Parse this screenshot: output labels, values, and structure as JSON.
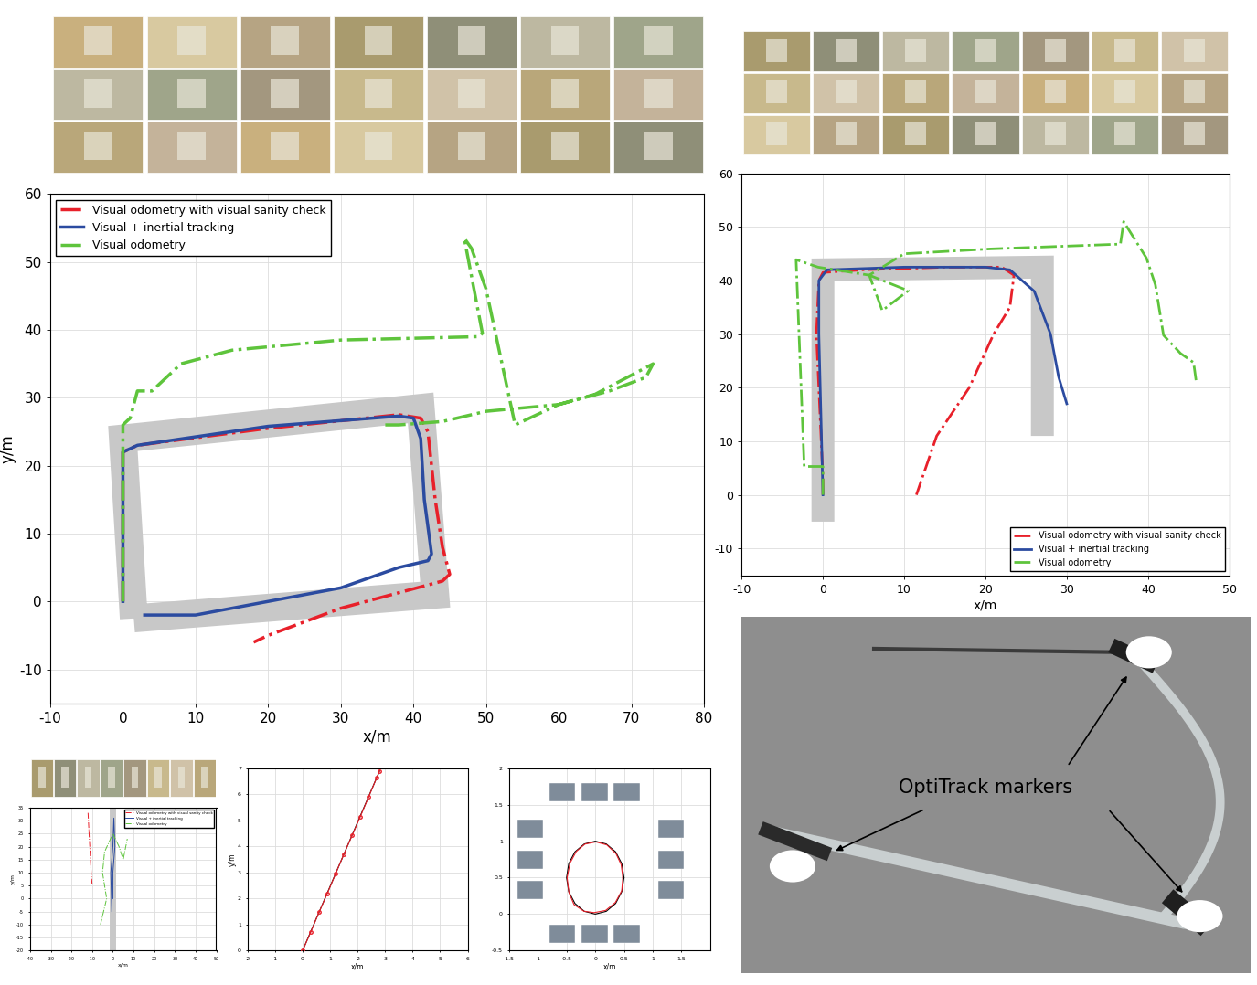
{
  "chart_data": [
    {
      "type": "line",
      "x_label": "x/m",
      "y_label": "y/m",
      "xlim": [
        -10,
        80
      ],
      "ylim": [
        -15,
        60
      ],
      "xticks": [
        -10,
        0,
        10,
        20,
        30,
        40,
        50,
        60,
        70,
        80
      ],
      "yticks": [
        -10,
        0,
        10,
        20,
        30,
        40,
        50,
        60
      ],
      "grid": true,
      "legend": "upper left",
      "corridor": {
        "color": "#c8c8c8",
        "x": [
          1.5,
          0,
          41,
          43,
          1.5
        ],
        "y": [
          -2.5,
          24,
          28.5,
          1,
          -2.5
        ]
      },
      "series": [
        {
          "name": "Visual odometry with visual sanity check",
          "color": "#e8202a",
          "line_style": "dashdot",
          "x": [
            0,
            0,
            2,
            20,
            38,
            41,
            42,
            43,
            44,
            45,
            44,
            30,
            20,
            18
          ],
          "y": [
            0,
            22,
            23,
            25.5,
            27.5,
            27,
            25,
            15,
            8,
            4,
            3,
            -1,
            -5,
            -6
          ]
        },
        {
          "name": "Visual + inertial tracking",
          "color": "#2b4ba0",
          "line_style": "solid",
          "x": [
            0,
            0,
            2,
            20,
            38,
            40,
            41,
            41.5,
            42.5,
            42,
            38,
            30,
            20,
            10,
            5,
            3
          ],
          "y": [
            0,
            22,
            23,
            25.8,
            27.3,
            27,
            24,
            15,
            7,
            6,
            5,
            2,
            0,
            -2,
            -2,
            -2
          ]
        },
        {
          "name": "Visual odometry",
          "color": "#5ec43c",
          "line_style": "dashdot",
          "x": [
            0,
            0,
            0,
            1,
            2,
            4,
            8,
            15,
            30,
            49,
            49.5,
            47,
            48,
            50,
            54,
            57,
            60,
            65,
            73,
            72,
            67,
            60,
            55,
            50,
            44,
            38,
            36
          ],
          "y": [
            0,
            20,
            26,
            27,
            31,
            31,
            35,
            37,
            38.5,
            39,
            39.5,
            53.5,
            52,
            46,
            26,
            27.5,
            29,
            30.5,
            35,
            33,
            31,
            29,
            28.5,
            28,
            26.5,
            26,
            26
          ]
        }
      ]
    },
    {
      "type": "line",
      "x_label": "x/m",
      "xlim": [
        -10,
        50
      ],
      "ylim": [
        -15,
        60
      ],
      "xticks": [
        -10,
        0,
        10,
        20,
        30,
        40,
        50
      ],
      "yticks": [
        -10,
        0,
        10,
        20,
        30,
        40,
        50,
        60
      ],
      "grid": true,
      "legend": "lower right",
      "corridor": {
        "color": "#c8c8c8",
        "x": [
          0,
          0,
          27,
          27
        ],
        "y": [
          -5,
          42,
          42.5,
          11
        ]
      },
      "series": [
        {
          "name": "Visual odometry with visual sanity check",
          "color": "#e8202a",
          "line_style": "dashdot",
          "x": [
            0,
            0,
            -0.8,
            -0.5,
            0,
            5,
            15,
            22,
            23.5,
            23,
            21,
            18,
            14,
            11.5
          ],
          "y": [
            0,
            3,
            30,
            40,
            41.5,
            42,
            42.5,
            42.5,
            41,
            35,
            30,
            20,
            11,
            0
          ]
        },
        {
          "name": "Visual + inertial tracking",
          "color": "#2b4ba0",
          "line_style": "solid",
          "x": [
            0,
            -0.5,
            -0.5,
            0.5,
            10,
            20,
            23,
            26,
            28,
            29,
            30
          ],
          "y": [
            0,
            30,
            40,
            42,
            42.5,
            42.5,
            42,
            38,
            30,
            22,
            17
          ]
        },
        {
          "name": "Visual odometry",
          "color": "#5ec43c",
          "line_style": "dashdot",
          "x": [
            0,
            0,
            -2.3,
            -3.3,
            -0.6,
            5.7,
            7.3,
            10.5,
            5.7,
            10,
            20.6,
            36.6,
            37,
            39.8,
            40.9,
            41.9,
            44,
            45.6,
            45.9
          ],
          "y": [
            0,
            5.3,
            5.3,
            43.9,
            42.5,
            41,
            34.4,
            38.1,
            41,
            45,
            45.9,
            46.8,
            51,
            44.2,
            39.2,
            29.8,
            26.4,
            24.7,
            21.4
          ]
        }
      ]
    },
    {
      "type": "line",
      "x_label": "x/m",
      "y_label": "y/m",
      "xlim": [
        -40,
        50
      ],
      "ylim": [
        -20,
        35
      ],
      "xticks": [
        -40,
        -30,
        -20,
        -10,
        0,
        10,
        20,
        30,
        40,
        50
      ],
      "yticks": [
        -20,
        -15,
        -10,
        -5,
        0,
        5,
        10,
        15,
        20,
        25,
        30,
        35
      ],
      "grid": true,
      "legend": "upper right",
      "corridor": {
        "color": "#c8c8c8",
        "x": [
          0,
          0
        ],
        "y": [
          -20,
          35
        ]
      },
      "series": [
        {
          "name": "Visual odometry with visual sanity check",
          "color": "#e8202a",
          "line_style": "dashdot",
          "x": [
            -12,
            -11.5,
            -11,
            -10.5,
            -10
          ],
          "y": [
            33,
            25,
            18,
            10,
            5
          ]
        },
        {
          "name": "Visual + inertial tracking",
          "color": "#2b4ba0",
          "line_style": "solid",
          "x": [
            0,
            0,
            1,
            0.5,
            0,
            -1,
            -0.5
          ],
          "y": [
            0,
            10,
            20,
            31,
            20,
            10,
            -5
          ]
        },
        {
          "name": "Visual odometry",
          "color": "#5ec43c",
          "line_style": "dashdot",
          "x": [
            -6,
            -3,
            -5,
            -4,
            0,
            3,
            5,
            7
          ],
          "y": [
            -10,
            0,
            10,
            18,
            25,
            20,
            15,
            23
          ]
        }
      ]
    },
    {
      "type": "line",
      "x_label": "x/m",
      "y_label": "y/m",
      "xlim": [
        -2,
        6
      ],
      "ylim": [
        0,
        7
      ],
      "xticks": [
        -2,
        -1,
        0,
        1,
        2,
        3,
        4,
        5,
        6
      ],
      "yticks": [
        0,
        1,
        2,
        3,
        4,
        5,
        6,
        7
      ],
      "grid": true,
      "series": [
        {
          "color": "#000000",
          "line_style": "solid",
          "x": [
            0,
            2.8
          ],
          "y": [
            0,
            6.9
          ]
        },
        {
          "color": "#e8202a",
          "line_style": "solid",
          "marker": "circle",
          "x": [
            0,
            0.3,
            0.6,
            0.9,
            1.2,
            1.5,
            1.8,
            2.1,
            2.4,
            2.7,
            2.8
          ],
          "y": [
            0,
            0.72,
            1.48,
            2.2,
            2.95,
            3.7,
            4.42,
            5.15,
            5.9,
            6.65,
            6.9
          ]
        }
      ]
    },
    {
      "type": "line",
      "x_label": "x/m",
      "xlim": [
        -1.5,
        2
      ],
      "ylim": [
        -0.5,
        2
      ],
      "xticks": [
        -1.5,
        -1,
        -0.5,
        0,
        0.5,
        1,
        1.5
      ],
      "yticks": [
        -0.5,
        0,
        0.5,
        1,
        1.5,
        2
      ],
      "grid": true,
      "series": [
        {
          "color": "#000000",
          "line_style": "solid",
          "x": [
            0.5,
            0.462,
            0.354,
            0.191,
            0,
            -0.191,
            -0.354,
            -0.462,
            -0.5,
            -0.462,
            -0.354,
            -0.191,
            0,
            0.191,
            0.354,
            0.462,
            0.5
          ],
          "y": [
            0.5,
            0.691,
            0.854,
            0.962,
            1.0,
            0.962,
            0.854,
            0.691,
            0.5,
            0.309,
            0.146,
            0.038,
            0,
            0.038,
            0.146,
            0.309,
            0.5
          ]
        },
        {
          "color": "#e8202a",
          "line_style": "solid",
          "x": [
            0.48,
            0.45,
            0.36,
            0.2,
            0.01,
            -0.18,
            -0.33,
            -0.44,
            -0.49,
            -0.46,
            -0.37,
            -0.2,
            -0.02,
            0.18,
            0.35,
            0.46,
            0.48
          ],
          "y": [
            0.5,
            0.68,
            0.83,
            0.95,
            0.99,
            0.96,
            0.86,
            0.7,
            0.5,
            0.3,
            0.13,
            0.04,
            0.02,
            0.05,
            0.16,
            0.32,
            0.5
          ]
        }
      ]
    }
  ],
  "diagram": {
    "label": "OptiTrack markers"
  }
}
